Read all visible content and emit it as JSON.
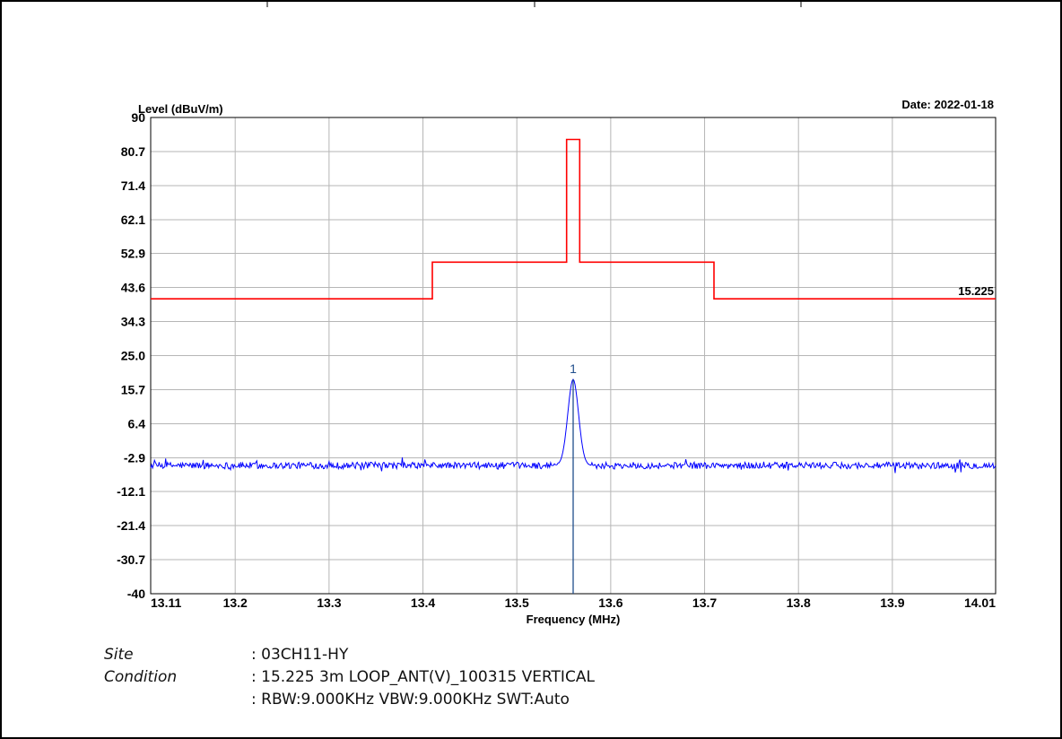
{
  "chart_data": {
    "type": "line",
    "title": "",
    "ylabel": "Level (dBuV/m)",
    "xlabel": "Frequency (MHz)",
    "date_label": "Date: 2022-01-18",
    "xlim": [
      13.11,
      14.01
    ],
    "ylim": [
      -40,
      90
    ],
    "x_ticks": [
      "13.11",
      "13.2",
      "13.3",
      "13.4",
      "13.5",
      "13.6",
      "13.7",
      "13.8",
      "13.9",
      "14.01"
    ],
    "y_ticks": [
      "90",
      "80.7",
      "71.4",
      "62.1",
      "52.9",
      "43.6",
      "34.3",
      "25.0",
      "15.7",
      "6.4",
      "-2.9",
      "-12.1",
      "-21.4",
      "-30.7",
      "-40"
    ],
    "grid": true,
    "limit_line": {
      "name": "15.225",
      "color": "#ff0000",
      "points": [
        [
          13.11,
          40.5
        ],
        [
          13.41,
          40.5
        ],
        [
          13.41,
          50.5
        ],
        [
          13.553,
          50.5
        ],
        [
          13.553,
          84
        ],
        [
          13.567,
          84
        ],
        [
          13.567,
          50.5
        ],
        [
          13.71,
          50.5
        ],
        [
          13.71,
          40.5
        ],
        [
          14.01,
          40.5
        ]
      ]
    },
    "measurement": {
      "color": "#0000ff",
      "baseline": -5,
      "peak": [
        13.56,
        18.5
      ],
      "peak_width_mhz": 0.013
    },
    "marker": {
      "label": "1",
      "x": 13.56,
      "color": "#1f4e8c"
    }
  },
  "info": {
    "site_label": "Site",
    "site_value": ": 03CH11-HY",
    "condition_label": "Condition",
    "condition_value": ": 15.225 3m LOOP_ANT(V)_100315 VERTICAL",
    "rbw_value": ": RBW:9.000KHz VBW:9.000KHz SWT:Auto"
  }
}
